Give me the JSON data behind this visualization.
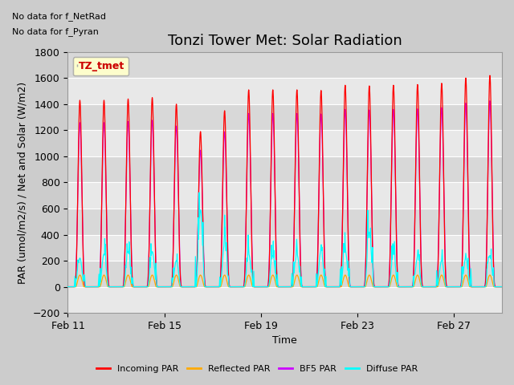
{
  "title": "Tonzi Tower Met: Solar Radiation",
  "xlabel": "Time",
  "ylabel": "PAR (umol/m2/s) / Net and Solar (W/m2)",
  "ylim": [
    -200,
    1800
  ],
  "yticks": [
    -200,
    0,
    200,
    400,
    600,
    800,
    1000,
    1200,
    1400,
    1600,
    1800
  ],
  "annotation_lines": [
    "No data for f_NetRad",
    "No data for f_Pyran"
  ],
  "legend_label": "TZ_tmet",
  "legend_box_color": "#ffffcc",
  "legend_box_edge": "#aaaaaa",
  "series_colors": {
    "incoming": "#ff0000",
    "reflected": "#ffaa00",
    "bf5": "#cc00ff",
    "diffuse": "#00ffff"
  },
  "series_labels": [
    "Incoming PAR",
    "Reflected PAR",
    "BF5 PAR",
    "Diffuse PAR"
  ],
  "xtick_labels": [
    "Feb 11",
    "Feb 15",
    "Feb 19",
    "Feb 23",
    "Feb 27"
  ],
  "xtick_days": [
    11,
    15,
    19,
    23,
    27
  ],
  "fig_bg_color": "#cccccc",
  "plot_bg_color": "#e8e8e8",
  "stripe_light": "#e8e8e8",
  "stripe_dark": "#d8d8d8",
  "n_days": 18,
  "start_day": 11,
  "grid_color": "#ffffff",
  "title_fontsize": 13,
  "label_fontsize": 9,
  "tick_fontsize": 9
}
